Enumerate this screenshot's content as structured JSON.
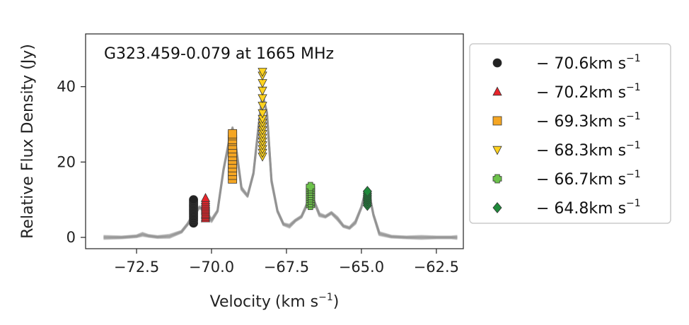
{
  "chart_data": {
    "type": "scatter",
    "title": "G323.459-0.079 at 1665 MHz",
    "xlabel": "Velocity",
    "xlabel_unit": "(km s",
    "xlabel_unit_exp": "−1",
    "xlabel_unit_close": ")",
    "ylabel": "Relative Flux Density (Jy)",
    "xlim": [
      -74.2,
      -61.6
    ],
    "ylim": [
      -3,
      54
    ],
    "xticks": [
      -72.5,
      -70.0,
      -67.5,
      -65.0,
      -62.5
    ],
    "xtick_labels": [
      "−72.5",
      "−70.0",
      "−67.5",
      "−65.0",
      "−62.5"
    ],
    "yticks": [
      0,
      20,
      40
    ],
    "ytick_labels": [
      "0",
      "20",
      "40"
    ],
    "grid": false,
    "legend_position": "outside-right",
    "spectrum": {
      "name": "",
      "color": "#8c8c8c",
      "x": [
        -73.6,
        -73.0,
        -72.5,
        -72.3,
        -72.1,
        -71.8,
        -71.4,
        -71.0,
        -70.8,
        -70.6,
        -70.4,
        -70.2,
        -70.0,
        -69.8,
        -69.6,
        -69.4,
        -69.3,
        -69.2,
        -69.0,
        -68.8,
        -68.6,
        -68.45,
        -68.3,
        -68.15,
        -68.0,
        -67.8,
        -67.6,
        -67.4,
        -67.2,
        -67.0,
        -66.8,
        -66.7,
        -66.6,
        -66.4,
        -66.2,
        -66.0,
        -65.8,
        -65.6,
        -65.4,
        -65.2,
        -65.0,
        -64.9,
        -64.8,
        -64.7,
        -64.6,
        -64.4,
        -64.0,
        -63.5,
        -63.0,
        -62.5,
        -62.0,
        -61.8
      ],
      "y": [
        0,
        0,
        0.3,
        0.8,
        0.4,
        0.1,
        0.3,
        1.5,
        3.5,
        6,
        8,
        7,
        4.5,
        7,
        18,
        26,
        29,
        25,
        13,
        11,
        17,
        28,
        38,
        33,
        15,
        7,
        3.5,
        3,
        4.5,
        5.5,
        9,
        12,
        10,
        6,
        5.5,
        6.5,
        5,
        3,
        2.5,
        4,
        8,
        11,
        12,
        10,
        6,
        1,
        0.2,
        0,
        0,
        0,
        0,
        0
      ]
    },
    "series": [
      {
        "name": "− 70.6km s",
        "exp": "−1",
        "x": -70.6,
        "marker": "circle",
        "color": "#222222",
        "values": [
          3.8,
          4.5,
          5.0,
          5.5,
          6.0,
          6.4,
          6.8,
          7.2,
          7.6,
          8.0,
          8.4,
          8.8,
          9.2,
          9.6,
          10.0
        ]
      },
      {
        "name": "− 70.2km s",
        "exp": "−1",
        "x": -70.2,
        "marker": "triangle-up",
        "color": "#e8252b",
        "values": [
          5.0,
          5.4,
          5.9,
          6.3,
          6.8,
          7.2,
          7.6,
          8.0,
          8.4,
          8.8,
          9.3,
          9.8,
          10.4
        ]
      },
      {
        "name": "− 69.3km s",
        "exp": "−1",
        "x": -69.3,
        "marker": "square",
        "color": "#f5a623",
        "values": [
          15.5,
          16.5,
          17.5,
          18.5,
          19.5,
          20.5,
          21.5,
          22.5,
          23.5,
          24.5,
          25.5,
          26.0,
          27.0,
          27.5
        ]
      },
      {
        "name": "− 68.3km s",
        "exp": "−1",
        "x": -68.3,
        "marker": "triangle-down",
        "color": "#ffd21f",
        "values": [
          21.5,
          22.5,
          23.5,
          24.5,
          25.5,
          26.5,
          27.5,
          28.5,
          29.5,
          30.5,
          31.5,
          33.0,
          35.0,
          37.0,
          39.0,
          41.0,
          43.0,
          44.0
        ]
      },
      {
        "name": "− 66.7km s",
        "exp": "−1",
        "x": -66.7,
        "marker": "plus",
        "color": "#6cc24a",
        "values": [
          8.5,
          9.2,
          9.9,
          10.5,
          11.1,
          11.7,
          12.3,
          12.9,
          13.5
        ]
      },
      {
        "name": "− 64.8km s",
        "exp": "−1",
        "x": -64.8,
        "marker": "diamond",
        "color": "#1f8a3b",
        "values": [
          8.5,
          9.1,
          9.7,
          10.2,
          10.7,
          11.2,
          11.7,
          12.2
        ]
      }
    ]
  }
}
